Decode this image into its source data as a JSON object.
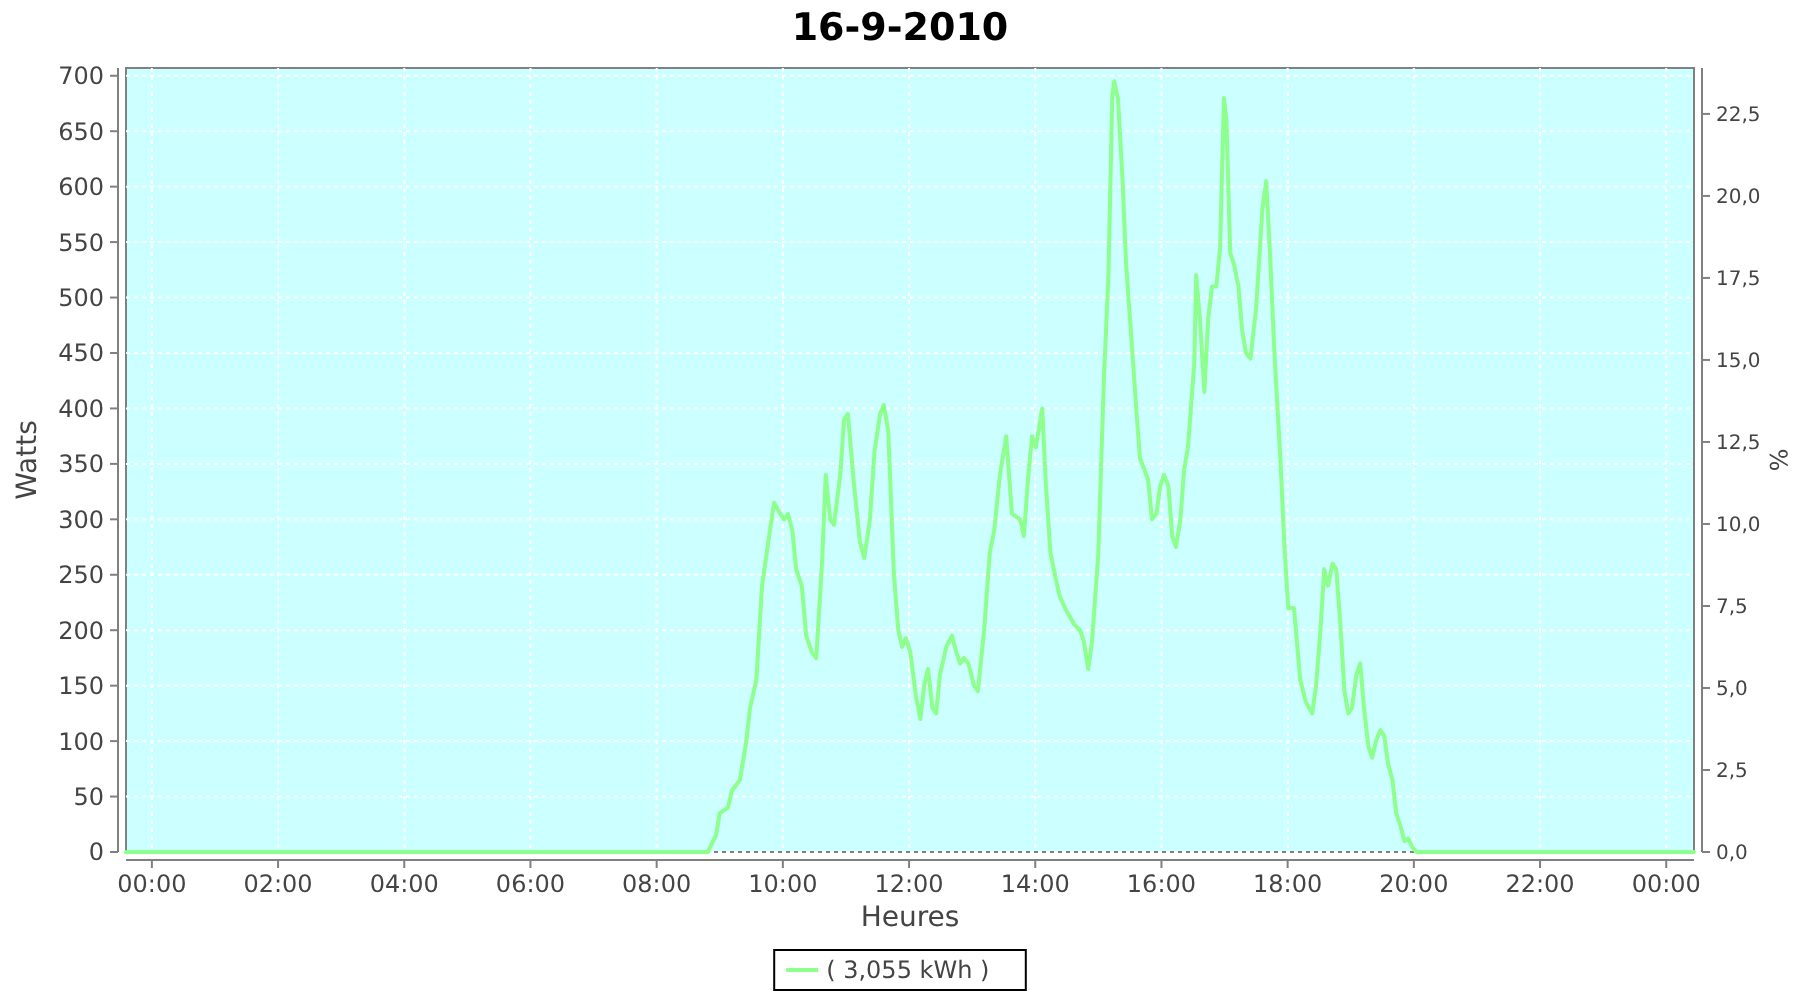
{
  "chart_data": {
    "type": "line",
    "title": "16-9-2010",
    "xlabel": "Heures",
    "ylabel": "Watts",
    "y2label": "%",
    "xlim": [
      -0.41,
      24.44
    ],
    "ylim": [
      0,
      707
    ],
    "y2lim": [
      0,
      23.9
    ],
    "xticks": [
      {
        "value": 0,
        "label": "00:00"
      },
      {
        "value": 2,
        "label": "02:00"
      },
      {
        "value": 4,
        "label": "04:00"
      },
      {
        "value": 6,
        "label": "06:00"
      },
      {
        "value": 8,
        "label": "08:00"
      },
      {
        "value": 10,
        "label": "10:00"
      },
      {
        "value": 12,
        "label": "12:00"
      },
      {
        "value": 14,
        "label": "14:00"
      },
      {
        "value": 16,
        "label": "16:00"
      },
      {
        "value": 18,
        "label": "18:00"
      },
      {
        "value": 20,
        "label": "20:00"
      },
      {
        "value": 22,
        "label": "22:00"
      },
      {
        "value": 24,
        "label": "00:00"
      }
    ],
    "yticks": [
      0,
      50,
      100,
      150,
      200,
      250,
      300,
      350,
      400,
      450,
      500,
      550,
      600,
      650,
      700
    ],
    "y2ticks": [
      {
        "value": 0,
        "label": "0,0"
      },
      {
        "value": 2.5,
        "label": "2,5"
      },
      {
        "value": 5,
        "label": "5,0"
      },
      {
        "value": 7.5,
        "label": "7,5"
      },
      {
        "value": 10,
        "label": "10,0"
      },
      {
        "value": 12.5,
        "label": "12,5"
      },
      {
        "value": 15,
        "label": "15,0"
      },
      {
        "value": 17.5,
        "label": "17,5"
      },
      {
        "value": 20,
        "label": "20,0"
      },
      {
        "value": 22.5,
        "label": "22,5"
      }
    ],
    "grid": true,
    "legend": "bottom",
    "line_style": "solid",
    "series": [
      {
        "name": "( 3,055 kWh )",
        "color": "#8cff8c",
        "x": [
          -0.41,
          8.81,
          8.94,
          9.0,
          9.13,
          9.19,
          9.32,
          9.42,
          9.48,
          9.58,
          9.67,
          9.77,
          9.86,
          9.96,
          10.02,
          10.08,
          10.15,
          10.21,
          10.3,
          10.37,
          10.46,
          10.53,
          10.62,
          10.68,
          10.75,
          10.81,
          10.91,
          10.97,
          11.03,
          11.13,
          11.22,
          11.29,
          11.38,
          11.45,
          11.54,
          11.6,
          11.67,
          11.76,
          11.83,
          11.89,
          11.95,
          12.02,
          12.11,
          12.18,
          12.24,
          12.3,
          12.37,
          12.43,
          12.49,
          12.59,
          12.68,
          12.75,
          12.81,
          12.87,
          12.94,
          13.03,
          13.09,
          13.19,
          13.28,
          13.35,
          13.44,
          13.54,
          13.63,
          13.76,
          13.82,
          13.89,
          13.95,
          14.01,
          14.11,
          14.17,
          14.24,
          14.33,
          14.39,
          14.49,
          14.62,
          14.71,
          14.77,
          14.84,
          14.9,
          15.0,
          15.09,
          15.16,
          15.22,
          15.25,
          15.31,
          15.38,
          15.44,
          15.54,
          15.6,
          15.66,
          15.73,
          15.79,
          15.85,
          15.92,
          15.98,
          16.04,
          16.11,
          16.17,
          16.23,
          16.3,
          16.36,
          16.42,
          16.52,
          16.55,
          16.61,
          16.68,
          16.74,
          16.8,
          16.87,
          16.93,
          16.99,
          17.03,
          17.09,
          17.15,
          17.22,
          17.28,
          17.34,
          17.41,
          17.5,
          17.6,
          17.66,
          17.72,
          17.79,
          17.88,
          17.95,
          18.01,
          18.1,
          18.2,
          18.29,
          18.39,
          18.45,
          18.52,
          18.58,
          18.64,
          18.71,
          18.77,
          18.83,
          18.9,
          18.96,
          19.02,
          19.09,
          19.15,
          19.21,
          19.28,
          19.34,
          19.4,
          19.47,
          19.53,
          19.59,
          19.66,
          19.72,
          19.78,
          19.85,
          19.91,
          19.97,
          20.04,
          24.44
        ],
        "values": [
          0,
          0,
          15,
          35,
          40,
          55,
          65,
          100,
          130,
          155,
          240,
          280,
          315,
          305,
          300,
          305,
          290,
          255,
          240,
          195,
          180,
          175,
          260,
          340,
          300,
          295,
          340,
          390,
          395,
          330,
          280,
          265,
          300,
          360,
          395,
          403,
          380,
          250,
          200,
          185,
          193,
          180,
          140,
          120,
          150,
          165,
          130,
          125,
          160,
          185,
          195,
          180,
          170,
          175,
          170,
          150,
          145,
          200,
          270,
          290,
          340,
          375,
          305,
          300,
          285,
          340,
          375,
          365,
          400,
          330,
          270,
          245,
          230,
          218,
          205,
          200,
          190,
          165,
          190,
          270,
          430,
          520,
          680,
          695,
          680,
          610,
          530,
          450,
          400,
          355,
          345,
          335,
          300,
          305,
          330,
          340,
          330,
          285,
          275,
          300,
          345,
          365,
          440,
          520,
          480,
          415,
          480,
          510,
          510,
          545,
          680,
          660,
          540,
          530,
          510,
          470,
          450,
          445,
          490,
          580,
          605,
          540,
          450,
          360,
          275,
          220,
          220,
          155,
          135,
          125,
          150,
          200,
          255,
          240,
          260,
          255,
          210,
          145,
          125,
          130,
          160,
          170,
          130,
          95,
          85,
          100,
          110,
          105,
          80,
          65,
          35,
          25,
          10,
          12,
          5,
          0,
          0
        ]
      }
    ]
  }
}
